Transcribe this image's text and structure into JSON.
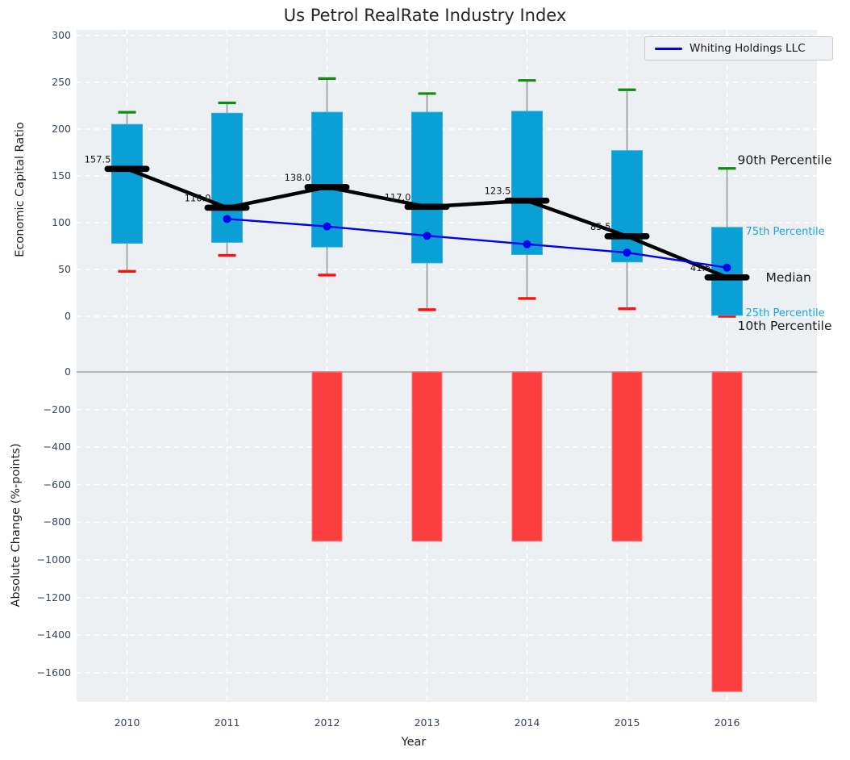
{
  "title": "Us Petrol RealRate Industry Index",
  "legend": {
    "label": "Whiting Holdings LLC"
  },
  "top_axis": {
    "ylabel": "Economic Capital Ratio",
    "yticks": [
      "0",
      "50",
      "100",
      "150",
      "200",
      "250",
      "300"
    ],
    "ytick_values": [
      0,
      50,
      100,
      150,
      200,
      250,
      300
    ],
    "ylim": [
      0,
      300
    ]
  },
  "bottom_axis": {
    "ylabel": "Absolute Change (%-points)",
    "yticks": [
      "0",
      "−200",
      "−400",
      "−600",
      "−800",
      "−1000",
      "−1200",
      "−1400",
      "−1600"
    ],
    "ytick_values": [
      0,
      -200,
      -400,
      -600,
      -800,
      -1000,
      -1200,
      -1400,
      -1600
    ],
    "ylim": [
      130,
      -1750
    ]
  },
  "x_axis": {
    "label": "Year",
    "ticks": [
      "2010",
      "2011",
      "2012",
      "2013",
      "2014",
      "2015",
      "2016"
    ]
  },
  "annotations": [
    {
      "text": "90th Percentile",
      "role": "p90",
      "color": "#1a1a1a",
      "size": 15.5
    },
    {
      "text": "75th Percentile",
      "role": "p75",
      "color": "#1da3dc",
      "size": 13
    },
    {
      "text": "Median",
      "role": "median",
      "color": "#1a1a1a",
      "size": 15.5
    },
    {
      "text": "25th Percentile",
      "role": "p25",
      "color": "#1da3dc",
      "size": 13
    },
    {
      "text": "10th Percentile",
      "role": "p10",
      "color": "#1a1a1a",
      "size": 15.5
    }
  ],
  "colors": {
    "box_fill": "#0aa0d6",
    "box_edge": "#2fb0de",
    "median_bar": "#000000",
    "median_line": "#000000",
    "whisker": "#8a8a8a",
    "cap_high": "#108a10",
    "cap_low": "#ff0e0e",
    "company_line": "#0000ee",
    "bar_fill": "#fb3e3e",
    "bar_edge": "#ff7b7b",
    "grid": "#ffffff",
    "zero_line": "#b5b5b5",
    "plot_bg": "#edf0f2"
  },
  "chart_data": {
    "type": "box+line+bar",
    "title": "Us Petrol RealRate Industry Index",
    "xlabel": "Year",
    "ylabel_top": "Economic Capital Ratio",
    "ylabel_bottom": "Absolute Change (%-points)",
    "categories": [
      2010,
      2011,
      2012,
      2013,
      2014,
      2015,
      2016
    ],
    "box": {
      "p90": [
        218,
        228,
        254,
        238,
        252,
        242,
        158
      ],
      "p75": [
        205,
        217,
        218,
        218,
        219,
        177,
        95
      ],
      "median": [
        157.5,
        116.0,
        138.0,
        117.0,
        123.5,
        85.5,
        41.5
      ],
      "p25": [
        78,
        79,
        74,
        57,
        66,
        58,
        1
      ],
      "p10": [
        48,
        65,
        44,
        7,
        19,
        8,
        0
      ]
    },
    "median_labels": [
      "157.5",
      "116.0",
      "138.0",
      "117.0",
      "123.5",
      "85.5",
      "41.5"
    ],
    "series": [
      {
        "name": "Whiting Holdings LLC",
        "values": [
          null,
          104,
          96,
          86,
          77,
          68,
          52
        ]
      }
    ],
    "bars": {
      "name": "Absolute Change (%-points)",
      "values": [
        null,
        null,
        -900,
        -900,
        -900,
        -900,
        -1700
      ]
    },
    "grid": true,
    "legend_position": "upper right"
  }
}
